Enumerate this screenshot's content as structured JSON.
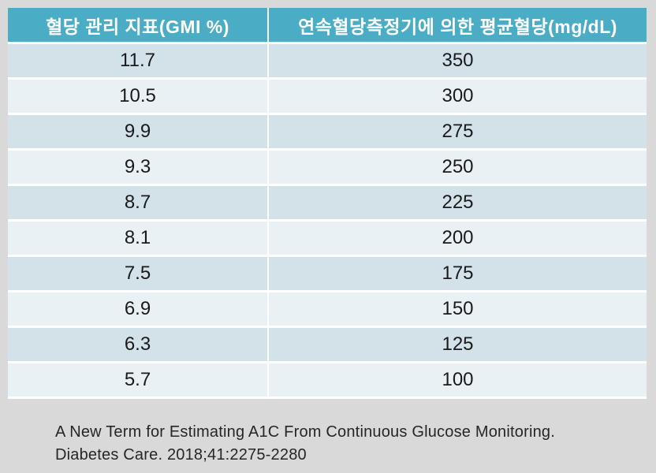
{
  "table": {
    "headers": [
      "혈당 관리 지표(GMI %)",
      "연속혈당측정기에 의한 평균혈당(mg/dL)"
    ],
    "rows": [
      [
        "11.7",
        "350"
      ],
      [
        "10.5",
        "300"
      ],
      [
        "9.9",
        "275"
      ],
      [
        "9.3",
        "250"
      ],
      [
        "8.7",
        "225"
      ],
      [
        "8.1",
        "200"
      ],
      [
        "7.5",
        "175"
      ],
      [
        "6.9",
        "150"
      ],
      [
        "6.3",
        "125"
      ],
      [
        "5.7",
        "100"
      ]
    ]
  },
  "citation": {
    "line1": "A New Term for Estimating A1C From Continuous Glucose Monitoring.",
    "line2": "Diabetes Care. 2018;41:2275-2280"
  },
  "colors": {
    "page_bg": "#D9D9D9",
    "header_bg": "#4BACC6",
    "header_text": "#FFFFFF",
    "row_odd_bg": "#D3E1E8",
    "row_even_bg": "#EAF1F5",
    "cell_text": "#1A1A1A",
    "citation_text": "#262626"
  },
  "chart_data": {
    "type": "table",
    "columns": [
      "혈당 관리 지표(GMI %)",
      "연속혈당측정기에 의한 평균혈당(mg/dL)"
    ],
    "rows": [
      [
        11.7,
        350
      ],
      [
        10.5,
        300
      ],
      [
        9.9,
        275
      ],
      [
        9.3,
        250
      ],
      [
        8.7,
        225
      ],
      [
        8.1,
        200
      ],
      [
        7.5,
        175
      ],
      [
        6.9,
        150
      ],
      [
        6.3,
        125
      ],
      [
        5.7,
        100
      ]
    ],
    "source": "A New Term for Estimating A1C From Continuous Glucose Monitoring. Diabetes Care. 2018;41:2275-2280"
  }
}
